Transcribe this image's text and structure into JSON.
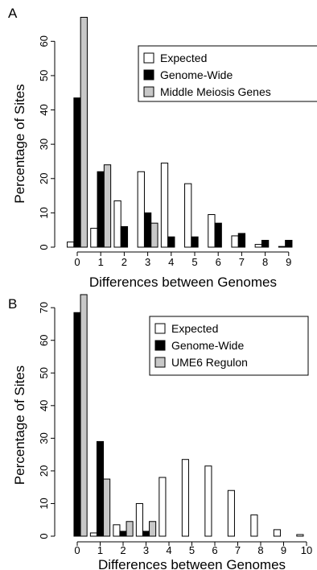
{
  "chart_data": [
    {
      "panel_label": "A",
      "type": "bar",
      "xlabel": "Differences between Genomes",
      "ylabel": "Percentage of Sites",
      "ylim": [
        0,
        65
      ],
      "yticks": [
        0,
        10,
        20,
        30,
        40,
        50,
        60
      ],
      "categories": [
        "0",
        "1",
        "2",
        "3",
        "4",
        "5",
        "6",
        "7",
        "8",
        "9"
      ],
      "legend_position": "top-right",
      "series": [
        {
          "name": "Expected",
          "color": "#ffffff",
          "values": [
            1.5,
            5.5,
            13.5,
            22,
            24.5,
            18.5,
            9.5,
            3.3,
            0.8,
            0.2
          ]
        },
        {
          "name": "Genome-Wide",
          "color": "#000000",
          "values": [
            43.5,
            22,
            6,
            10,
            3,
            3,
            7,
            4,
            2,
            2
          ]
        },
        {
          "name": "Middle Meiosis Genes",
          "color": "#c8c8c8",
          "values": [
            67,
            24,
            0,
            7,
            0,
            0,
            0,
            0,
            0,
            0
          ]
        }
      ]
    },
    {
      "panel_label": "B",
      "type": "bar",
      "xlabel": "Differences between Genomes",
      "ylabel": "Percentage of Sites",
      "ylim": [
        0,
        73
      ],
      "yticks": [
        0,
        10,
        20,
        30,
        40,
        50,
        60,
        70
      ],
      "categories": [
        "0",
        "1",
        "2",
        "3",
        "4",
        "5",
        "6",
        "7",
        "8",
        "9",
        "10"
      ],
      "legend_position": "top-right",
      "series": [
        {
          "name": "Expected",
          "color": "#ffffff",
          "values": [
            0,
            1,
            3.5,
            10,
            18,
            23.5,
            21.5,
            14,
            6.5,
            2,
            0.5
          ]
        },
        {
          "name": "Genome-Wide",
          "color": "#000000",
          "values": [
            68.5,
            29,
            1.5,
            1.5,
            0,
            0,
            0,
            0,
            0,
            0,
            0
          ]
        },
        {
          "name": "UME6 Regulon",
          "color": "#c8c8c8",
          "values": [
            74,
            17.5,
            4.5,
            4.5,
            0,
            0,
            0,
            0,
            0,
            0,
            0
          ]
        }
      ]
    }
  ]
}
